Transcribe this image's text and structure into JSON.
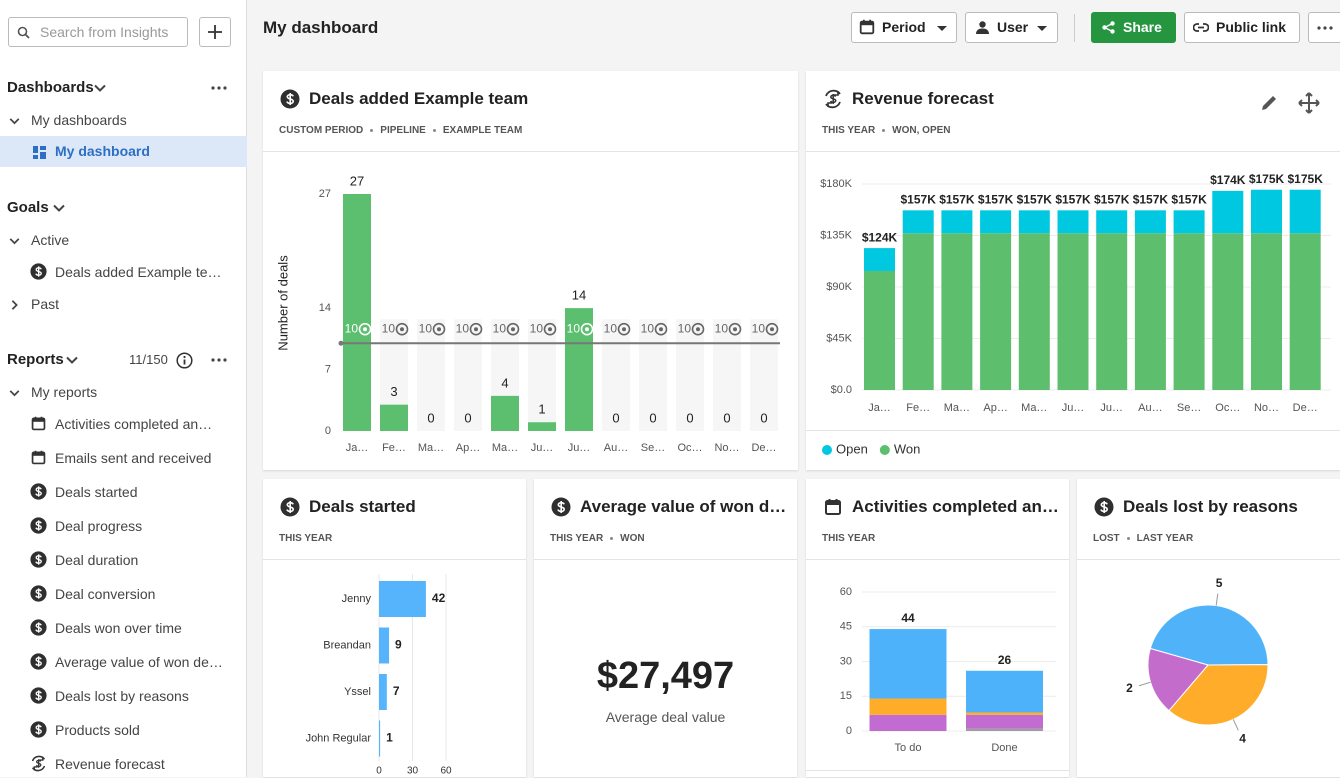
{
  "sidebar": {
    "search_placeholder": "Search from Insights",
    "dashboards": {
      "title": "Dashboards",
      "group": "My dashboards",
      "items": [
        "My dashboard"
      ]
    },
    "goals": {
      "title": "Goals",
      "active": "Active",
      "items": [
        "Deals added Example te…"
      ],
      "past": "Past"
    },
    "reports": {
      "title": "Reports",
      "count": "11/150",
      "group": "My reports",
      "items": [
        "Activities completed an…",
        "Emails sent and received",
        "Deals started",
        "Deal progress",
        "Deal duration",
        "Deal conversion",
        "Deals won over time",
        "Average value of won de…",
        "Deals lost by reasons",
        "Products sold",
        "Revenue forecast"
      ]
    }
  },
  "header": {
    "title": "My dashboard",
    "period": "Period",
    "user": "User",
    "share": "Share",
    "public_link": "Public link"
  },
  "widgets": [
    {
      "title": "Deals added Example team",
      "subtitle": [
        "CUSTOM PERIOD",
        "PIPELINE",
        "EXAMPLE TEAM"
      ],
      "chart_data": {
        "type": "bar",
        "y_label": "Number of deals",
        "categories": [
          "Ja…",
          "Fe…",
          "Ma…",
          "Ap…",
          "Ma…",
          "Ju…",
          "Ju…",
          "Au…",
          "Se…",
          "Oc…",
          "No…",
          "De…"
        ],
        "values": [
          27,
          3,
          0,
          0,
          4,
          1,
          14,
          0,
          0,
          0,
          0,
          0
        ],
        "color": "#5bbf6f",
        "ylim": [
          0,
          27
        ],
        "yticks": [
          0,
          7,
          14,
          27
        ],
        "grid": false,
        "goal": 10
      }
    },
    {
      "title": "Revenue forecast",
      "subtitle": [
        "THIS YEAR",
        "WON, OPEN"
      ],
      "chart_data": {
        "type": "stacked_bar",
        "categories": [
          "Ja…",
          "Fe…",
          "Ma…",
          "Ap…",
          "Ma…",
          "Ju…",
          "Ju…",
          "Au…",
          "Se…",
          "Oc…",
          "No…",
          "De…"
        ],
        "series": [
          {
            "name": "Won",
            "color": "#5dbf6e",
            "values": [
              104000,
              137000,
              137000,
              137000,
              137000,
              137000,
              137000,
              137000,
              137000,
              137000,
              137000,
              137000
            ]
          },
          {
            "name": "Open",
            "color": "#00c8e0",
            "values": [
              20000,
              20000,
              20000,
              20000,
              20000,
              20000,
              20000,
              20000,
              20000,
              37000,
              38000,
              38000
            ]
          }
        ],
        "total_labels": [
          "$124K",
          "$157K",
          "$157K",
          "$157K",
          "$157K",
          "$157K",
          "$157K",
          "$157K",
          "$157K",
          "$174K",
          "$175K",
          "$175K"
        ],
        "ylim": [
          0,
          180000
        ],
        "yticks": [
          {
            "value": 0,
            "label": "$0.0"
          },
          {
            "value": 45000,
            "label": "$45K"
          },
          {
            "value": 90000,
            "label": "$90K"
          },
          {
            "value": 135000,
            "label": "$135K"
          },
          {
            "value": 180000,
            "label": "$180K"
          }
        ],
        "grid": true
      }
    },
    {
      "title": "Deals started",
      "subtitle": [
        "THIS YEAR"
      ],
      "chart_data": {
        "type": "hbar",
        "categories": [
          "Jenny",
          "Breandan",
          "Yssel",
          "John Regular"
        ],
        "values": [
          42,
          9,
          7,
          1
        ],
        "color": "#55b4fb",
        "xlim": [
          0,
          60
        ],
        "xticks": [
          0,
          30,
          60
        ],
        "grid": true
      }
    },
    {
      "title": "Average value of won d…",
      "subtitle": [
        "THIS YEAR",
        "WON"
      ],
      "kpi": {
        "value": "$27,497",
        "label": "Average deal value"
      }
    },
    {
      "title": "Activities completed an…",
      "subtitle": [
        "THIS YEAR"
      ],
      "chart_data": {
        "type": "stacked_bar",
        "categories": [
          "To do",
          "Done"
        ],
        "series": [
          {
            "color": "#9e9e9e",
            "values": [
              0,
              1
            ]
          },
          {
            "color": "#c26bd0",
            "values": [
              7,
              6
            ]
          },
          {
            "color": "#ffad29",
            "values": [
              7,
              1
            ]
          },
          {
            "color": "#4db2fa",
            "values": [
              30,
              18
            ]
          }
        ],
        "total_labels": [
          "44",
          "26"
        ],
        "ylim": [
          0,
          60
        ],
        "yticks": [
          0,
          15,
          30,
          45,
          60
        ],
        "grid": true
      }
    },
    {
      "title": "Deals lost by reasons",
      "subtitle": [
        "LOST",
        "LAST YEAR"
      ],
      "chart_data": {
        "type": "pie",
        "values": [
          5,
          4,
          2
        ],
        "colors": [
          "#50b3fa",
          "#ffac2a",
          "#c36ccc"
        ]
      }
    }
  ]
}
